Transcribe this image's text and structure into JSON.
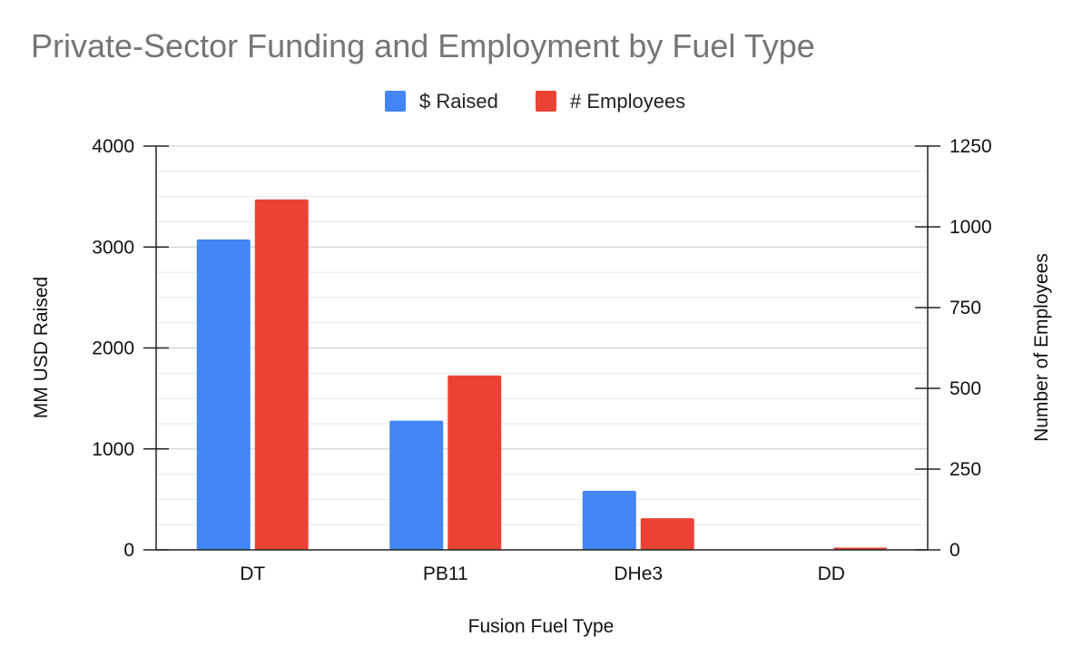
{
  "chart_data": {
    "type": "bar",
    "title": "Private-Sector Funding and Employment by Fuel Type",
    "xlabel": "Fusion Fuel Type",
    "ylabel_left": "MM USD Raised",
    "ylabel_right": "Number of Employees",
    "categories": [
      "DT",
      "PB11",
      "DHe3",
      "DD"
    ],
    "series": [
      {
        "name": "$ Raised",
        "axis": "left",
        "color": "#4285F4",
        "values": [
          3075,
          1280,
          585,
          5
        ]
      },
      {
        "name": "# Employees",
        "axis": "right",
        "color": "#EA4335",
        "values": [
          1085,
          540,
          98,
          7
        ]
      }
    ],
    "ylim_left": [
      0,
      4000
    ],
    "ylim_right": [
      0,
      1250
    ],
    "yticks_left": [
      "0",
      "1000",
      "2000",
      "3000",
      "4000"
    ],
    "yticks_right": [
      "0",
      "250",
      "500",
      "750",
      "1000",
      "1250"
    ],
    "grid": true,
    "minor_grid": true,
    "legend_position": "top-center"
  }
}
